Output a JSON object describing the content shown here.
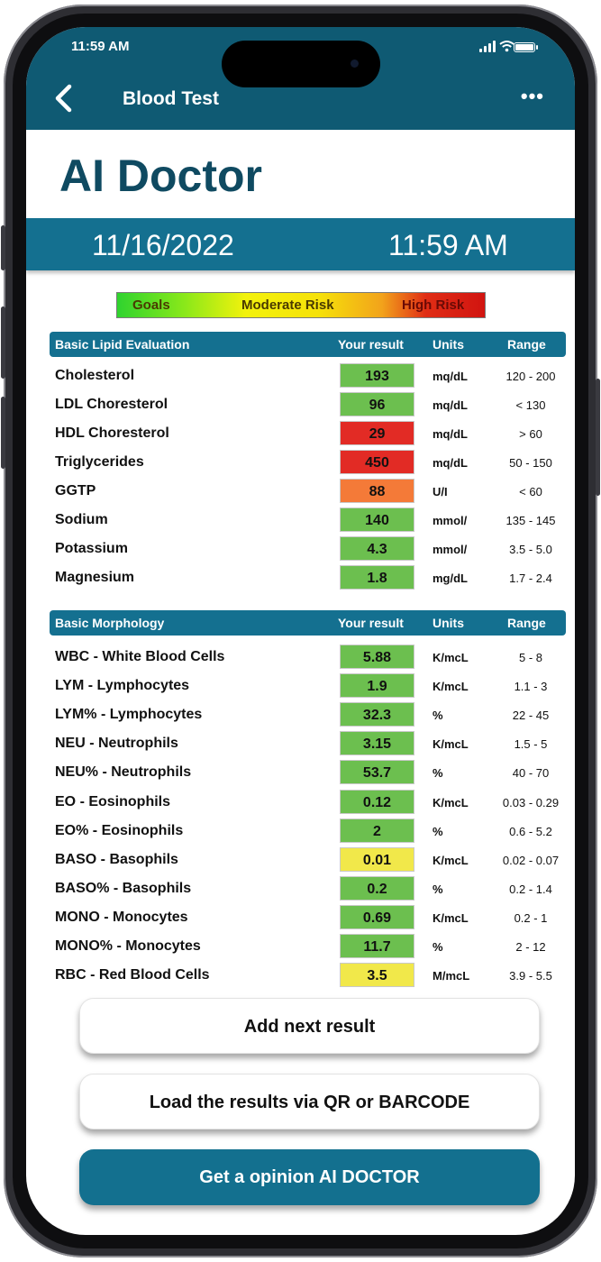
{
  "status_bar": {
    "time": "11:59 AM"
  },
  "nav": {
    "back_icon": "chevron-left-icon",
    "title": "Blood Test",
    "more_label": "•••"
  },
  "header": {
    "app_title": "AI Doctor",
    "date": "11/16/2022",
    "time": "11:59 AM"
  },
  "legend": {
    "goals": "Goals",
    "moderate": "Moderate Risk",
    "high": "High Risk"
  },
  "colors": {
    "primary": "#0f5a73",
    "accent": "#147090",
    "green": "#6cbf4f",
    "yellow": "#f1e84a",
    "orange": "#f47a38",
    "red": "#e22b25"
  },
  "lipid": {
    "header": {
      "title": "Basic Lipid Evaluation",
      "result": "Your result",
      "units": "Units",
      "range": "Range"
    },
    "rows": [
      {
        "name": "Cholesterol",
        "value": "193",
        "unit": "mq/dL",
        "range": "120 - 200",
        "status": "green"
      },
      {
        "name": "LDL Choresterol",
        "value": "96",
        "unit": "mq/dL",
        "range": "< 130",
        "status": "green"
      },
      {
        "name": "HDL Choresterol",
        "value": "29",
        "unit": "mq/dL",
        "range": "> 60",
        "status": "red"
      },
      {
        "name": "Triglycerides",
        "value": "450",
        "unit": "mq/dL",
        "range": "50 - 150",
        "status": "red"
      },
      {
        "name": "GGTP",
        "value": "88",
        "unit": "U/I",
        "range": "< 60",
        "status": "orange"
      },
      {
        "name": "Sodium",
        "value": "140",
        "unit": "mmol/",
        "range": "135 - 145",
        "status": "green"
      },
      {
        "name": "Potassium",
        "value": "4.3",
        "unit": "mmol/",
        "range": "3.5 - 5.0",
        "status": "green"
      },
      {
        "name": "Magnesium",
        "value": "1.8",
        "unit": "mg/dL",
        "range": "1.7 - 2.4",
        "status": "green"
      }
    ]
  },
  "morphology": {
    "header": {
      "title": "Basic Morphology",
      "result": "Your result",
      "units": "Units",
      "range": "Range"
    },
    "rows": [
      {
        "name": "WBC - White Blood Cells",
        "value": "5.88",
        "unit": "K/mcL",
        "range": "5 - 8",
        "status": "green"
      },
      {
        "name": "LYM - Lymphocytes",
        "value": "1.9",
        "unit": "K/mcL",
        "range": "1.1 - 3",
        "status": "green"
      },
      {
        "name": "LYM% - Lymphocytes",
        "value": "32.3",
        "unit": "%",
        "range": "22 - 45",
        "status": "green"
      },
      {
        "name": "NEU - Neutrophils",
        "value": "3.15",
        "unit": "K/mcL",
        "range": "1.5 - 5",
        "status": "green"
      },
      {
        "name": "NEU% - Neutrophils",
        "value": "53.7",
        "unit": "%",
        "range": "40 - 70",
        "status": "green"
      },
      {
        "name": "EO - Eosinophils",
        "value": "0.12",
        "unit": "K/mcL",
        "range": "0.03 - 0.29",
        "status": "green"
      },
      {
        "name": "EO% - Eosinophils",
        "value": "2",
        "unit": "%",
        "range": "0.6 - 5.2",
        "status": "green"
      },
      {
        "name": "BASO - Basophils",
        "value": "0.01",
        "unit": "K/mcL",
        "range": "0.02 - 0.07",
        "status": "yellow"
      },
      {
        "name": "BASO% - Basophils",
        "value": "0.2",
        "unit": "%",
        "range": "0.2 - 1.4",
        "status": "green"
      },
      {
        "name": "MONO - Monocytes",
        "value": "0.69",
        "unit": "K/mcL",
        "range": "0.2 - 1",
        "status": "green"
      },
      {
        "name": "MONO% - Monocytes",
        "value": "11.7",
        "unit": "%",
        "range": "2 - 12",
        "status": "green"
      },
      {
        "name": "RBC - Red Blood Cells",
        "value": "3.5",
        "unit": "M/mcL",
        "range": "3.9 - 5.5",
        "status": "yellow"
      }
    ]
  },
  "buttons": {
    "add_next": "Add next result",
    "load_qr": "Load the results via QR or BARCODE",
    "get_opinion": "Get a opinion AI DOCTOR"
  }
}
